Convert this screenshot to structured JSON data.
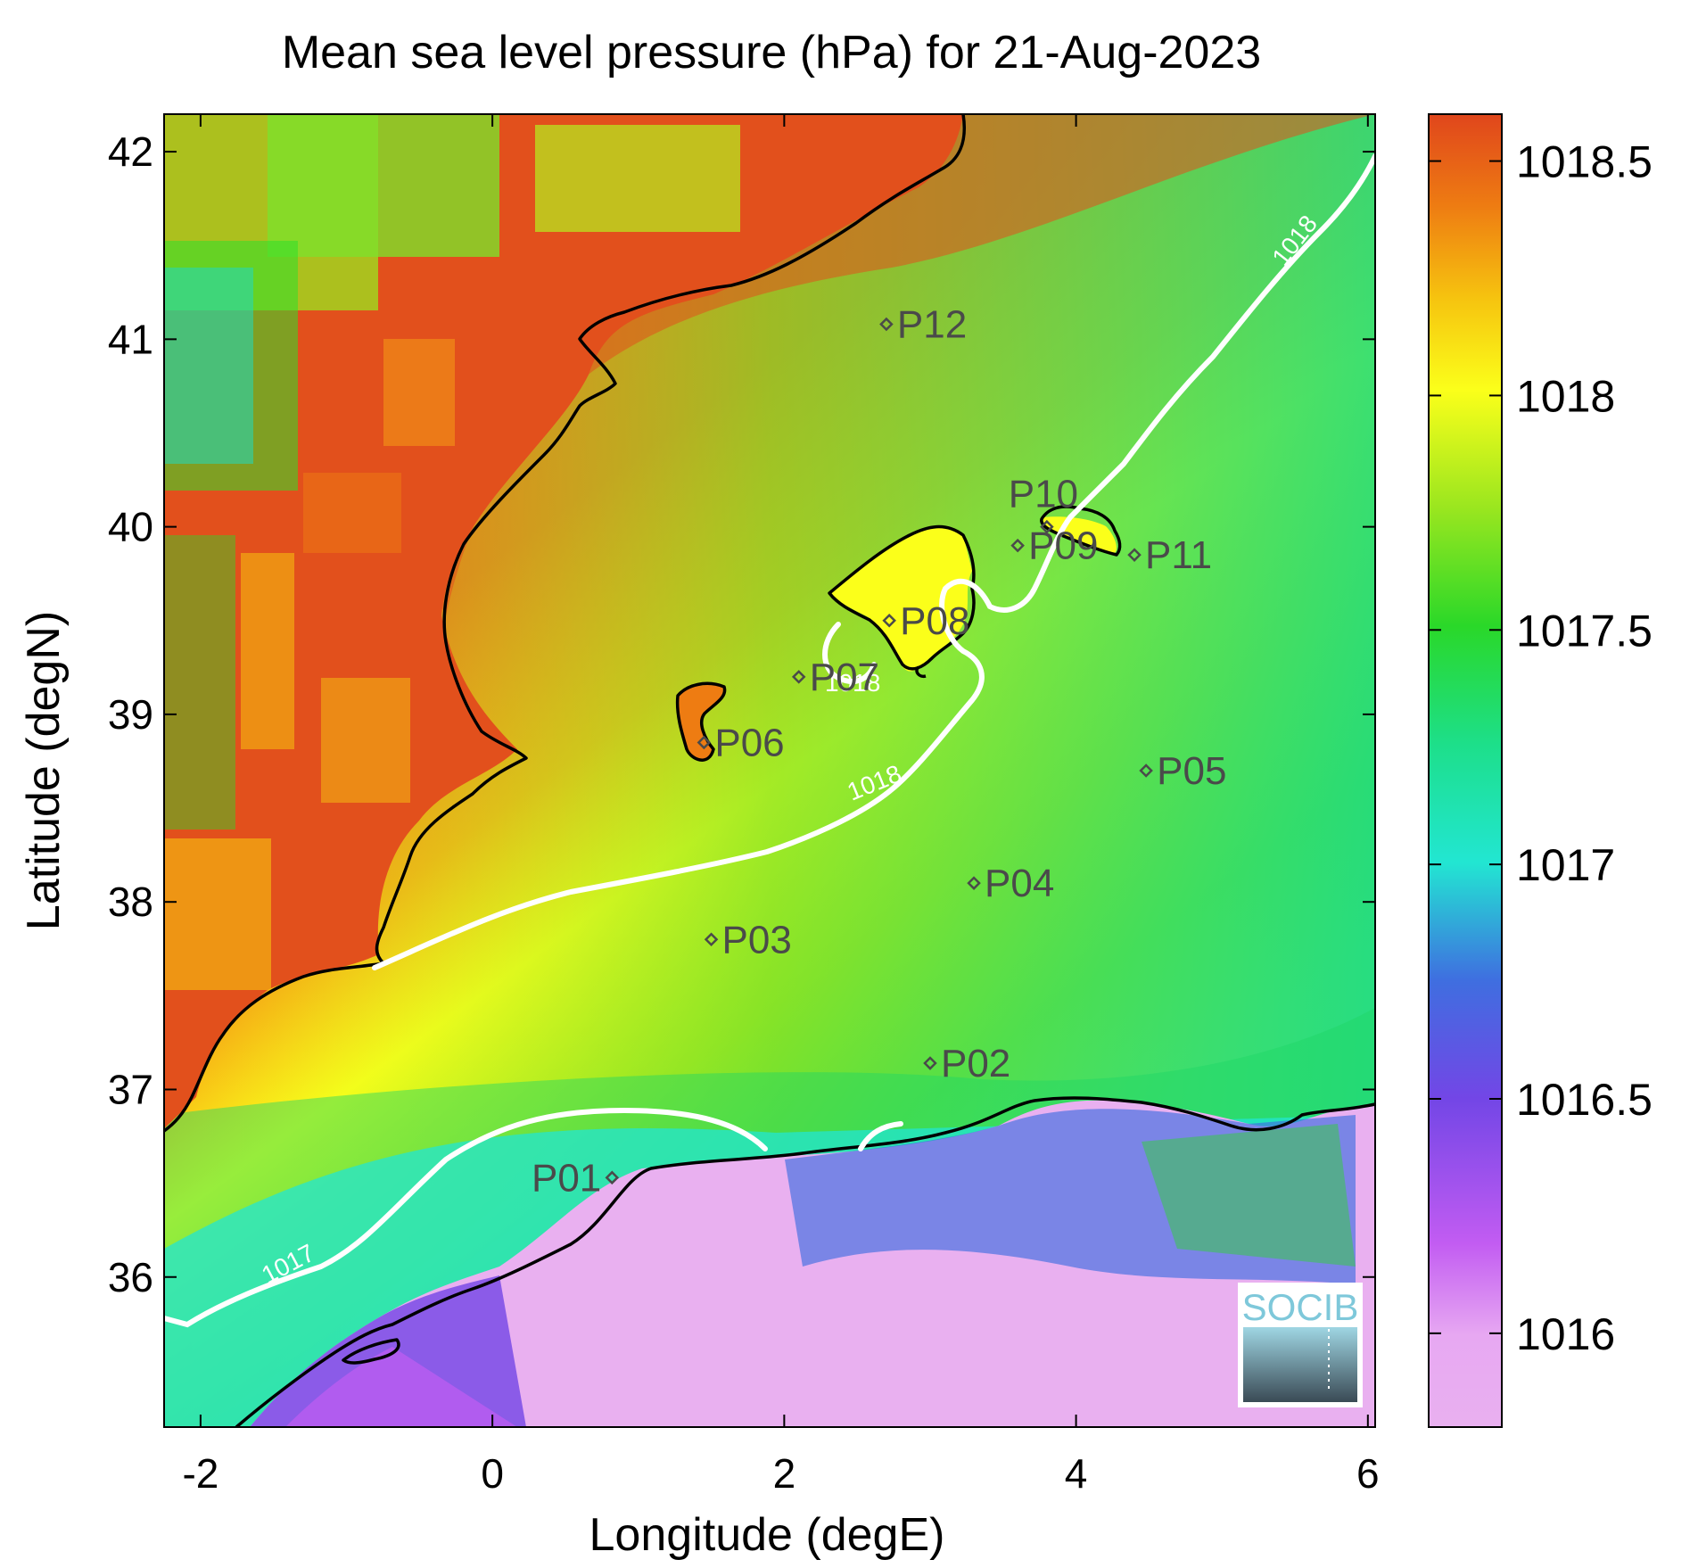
{
  "title": "Mean sea level pressure (hPa) for 21-Aug-2023",
  "xlabel": "Longitude (degE)",
  "ylabel": "Latitude (degN)",
  "map": {
    "lon_range": [
      -2.25,
      6.05
    ],
    "lat_range": [
      35.2,
      42.2
    ],
    "lon_ticks": [
      "-2",
      "0",
      "2",
      "4",
      "6"
    ],
    "lat_ticks": [
      "36",
      "37",
      "38",
      "39",
      "40",
      "41",
      "42"
    ],
    "colorbar": {
      "ticks": [
        "1016",
        "1016.5",
        "1017",
        "1017.5",
        "1018",
        "1018.5"
      ],
      "range": [
        1015.8,
        1018.6
      ],
      "colormap": [
        "#e9b0f0",
        "#c25cf2",
        "#7346e6",
        "#3f6ee0",
        "#22e6d2",
        "#1fd866",
        "#2ee02a",
        "#9ae61f",
        "#fbff1a",
        "#f6c30f",
        "#ee7c12",
        "#e2501c"
      ]
    },
    "contours": [
      {
        "level": "1018",
        "labels": [
          "1018",
          "1018",
          "1018"
        ]
      },
      {
        "level": "1017",
        "labels": [
          "1017"
        ]
      }
    ],
    "stations": [
      {
        "id": "P01",
        "lon": 0.82,
        "lat": 36.53
      },
      {
        "id": "P02",
        "lon": 3.0,
        "lat": 37.14
      },
      {
        "id": "P03",
        "lon": 1.5,
        "lat": 37.8
      },
      {
        "id": "P04",
        "lon": 3.3,
        "lat": 38.1
      },
      {
        "id": "P05",
        "lon": 4.48,
        "lat": 38.7
      },
      {
        "id": "P06",
        "lon": 1.45,
        "lat": 38.85
      },
      {
        "id": "P07",
        "lon": 2.1,
        "lat": 39.2
      },
      {
        "id": "P08",
        "lon": 2.72,
        "lat": 39.5
      },
      {
        "id": "P09",
        "lon": 3.6,
        "lat": 39.9
      },
      {
        "id": "P10",
        "lon": 3.8,
        "lat": 40.0
      },
      {
        "id": "P11",
        "lon": 4.4,
        "lat": 39.85
      },
      {
        "id": "P12",
        "lon": 2.7,
        "lat": 41.08
      }
    ],
    "logo_text": "SOCIB"
  }
}
